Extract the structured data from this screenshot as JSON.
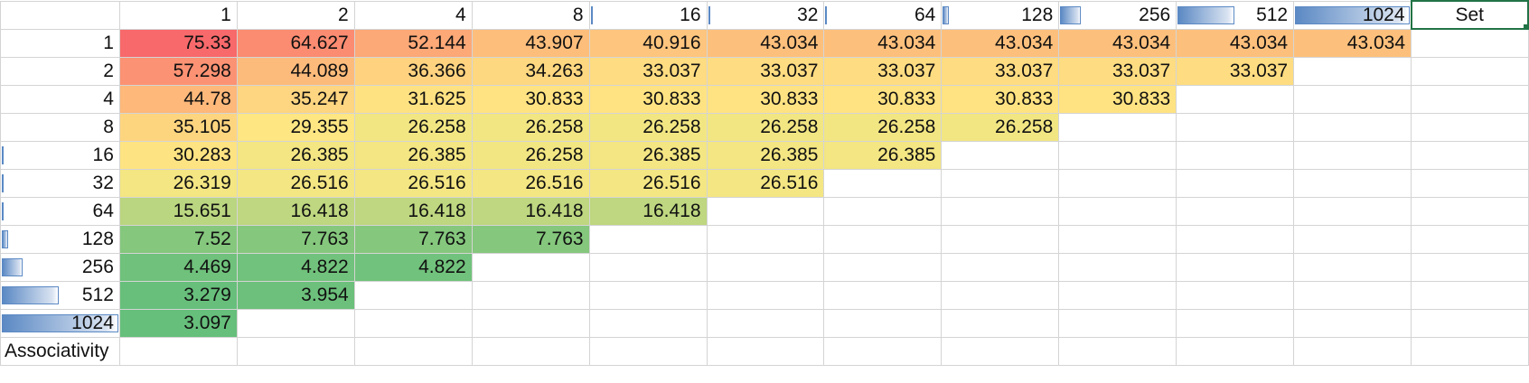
{
  "sheet": {
    "col_headers": [
      "1",
      "2",
      "4",
      "8",
      "16",
      "32",
      "64",
      "128",
      "256",
      "512",
      "1024"
    ],
    "col_header_bars": [
      0,
      0,
      0,
      0,
      0.003,
      0.009,
      0.025,
      0.07,
      0.19,
      0.5,
      1.0
    ],
    "set_label": "Set",
    "footer_label": "Associativity",
    "rows": [
      {
        "label": "1",
        "bar": 0,
        "values": [
          "75.33",
          "64.627",
          "52.144",
          "43.907",
          "40.916",
          "43.034",
          "43.034",
          "43.034",
          "43.034",
          "43.034",
          "43.034"
        ],
        "colors": [
          "#f8696b",
          "#fb8c71",
          "#fca877",
          "#fdbe7c",
          "#fec57e",
          "#fdc07c",
          "#fdc07c",
          "#fdc07c",
          "#fdc07c",
          "#fdc07c",
          "#fdc07c"
        ]
      },
      {
        "label": "2",
        "bar": 0,
        "values": [
          "57.298",
          "44.089",
          "36.366",
          "34.263",
          "33.037",
          "33.037",
          "33.037",
          "33.037",
          "33.037",
          "33.037"
        ],
        "colors": [
          "#fb9273",
          "#fdbb7b",
          "#fed27f",
          "#fed880",
          "#fedc81",
          "#fedc81",
          "#fedc81",
          "#fedc81",
          "#fedc81",
          "#fedc81"
        ]
      },
      {
        "label": "4",
        "bar": 0,
        "values": [
          "44.78",
          "35.247",
          "31.625",
          "30.833",
          "30.833",
          "30.833",
          "30.833",
          "30.833",
          "30.833"
        ],
        "colors": [
          "#fdb87a",
          "#fed580",
          "#fee282",
          "#ffe382",
          "#ffe382",
          "#ffe382",
          "#ffe382",
          "#ffe382",
          "#ffe382"
        ]
      },
      {
        "label": "8",
        "bar": 0,
        "values": [
          "35.105",
          "29.355",
          "26.258",
          "26.258",
          "26.258",
          "26.258",
          "26.258",
          "26.258"
        ],
        "colors": [
          "#fed57f",
          "#fee683",
          "#f2e683",
          "#f2e683",
          "#f2e683",
          "#f2e683",
          "#f2e683",
          "#f2e683"
        ]
      },
      {
        "label": "16",
        "bar": 0.003,
        "values": [
          "30.283",
          "26.385",
          "26.385",
          "26.258",
          "26.385",
          "26.385",
          "26.385"
        ],
        "colors": [
          "#fee382",
          "#f3e683",
          "#f3e683",
          "#f2e683",
          "#f3e683",
          "#f3e683",
          "#f3e683"
        ]
      },
      {
        "label": "32",
        "bar": 0.009,
        "values": [
          "26.319",
          "26.516",
          "26.516",
          "26.516",
          "26.516",
          "26.516"
        ],
        "colors": [
          "#f3e683",
          "#f4e683",
          "#f4e683",
          "#f4e683",
          "#f4e683",
          "#f4e683"
        ]
      },
      {
        "label": "64",
        "bar": 0.025,
        "values": [
          "15.651",
          "16.418",
          "16.418",
          "16.418",
          "16.418"
        ],
        "colors": [
          "#bad680",
          "#bed780",
          "#bed780",
          "#bed780",
          "#bed780"
        ]
      },
      {
        "label": "128",
        "bar": 0.07,
        "values": [
          "7.52",
          "7.763",
          "7.763",
          "7.763"
        ],
        "colors": [
          "#84c77d",
          "#85c77d",
          "#85c77d",
          "#85c77d"
        ]
      },
      {
        "label": "256",
        "bar": 0.19,
        "values": [
          "4.469",
          "4.822",
          "4.822"
        ],
        "colors": [
          "#6fc17b",
          "#71c27c",
          "#71c27c"
        ]
      },
      {
        "label": "512",
        "bar": 0.5,
        "values": [
          "3.279",
          "3.954"
        ],
        "colors": [
          "#67bf7b",
          "#6cc07b"
        ]
      },
      {
        "label": "1024",
        "bar": 1.0,
        "values": [
          "3.097"
        ],
        "colors": [
          "#66bf7b"
        ]
      }
    ]
  }
}
